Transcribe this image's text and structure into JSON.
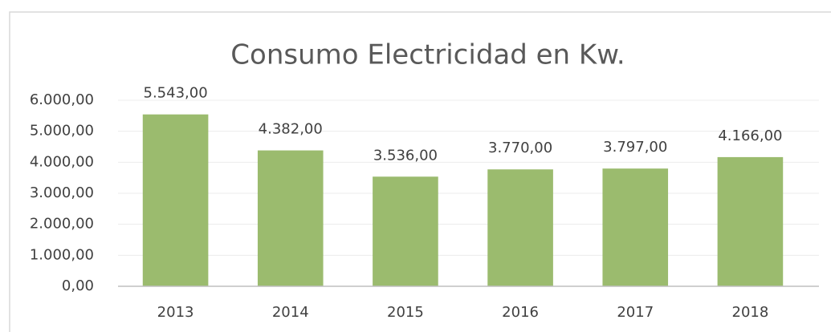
{
  "chart_data": {
    "type": "bar",
    "title": "Consumo Electricidad en Kw.",
    "categories": [
      "2013",
      "2014",
      "2015",
      "2016",
      "2017",
      "2018"
    ],
    "values": [
      5543,
      4382,
      3536,
      3770,
      3797,
      4166
    ],
    "value_labels": [
      "5.543,00",
      "4.382,00",
      "3.536,00",
      "3.770,00",
      "3.797,00",
      "4.166,00"
    ],
    "color": "#9bbb6e",
    "ylim": [
      0,
      6000
    ],
    "yticks": [
      {
        "value": 0,
        "label": "0,00"
      },
      {
        "value": 1000,
        "label": "1.000,00"
      },
      {
        "value": 2000,
        "label": "2.000,00"
      },
      {
        "value": 3000,
        "label": "3.000,00"
      },
      {
        "value": 4000,
        "label": "4.000,00"
      },
      {
        "value": 5000,
        "label": "5.000,00"
      },
      {
        "value": 6000,
        "label": "6.000,00"
      }
    ],
    "grid": true
  }
}
